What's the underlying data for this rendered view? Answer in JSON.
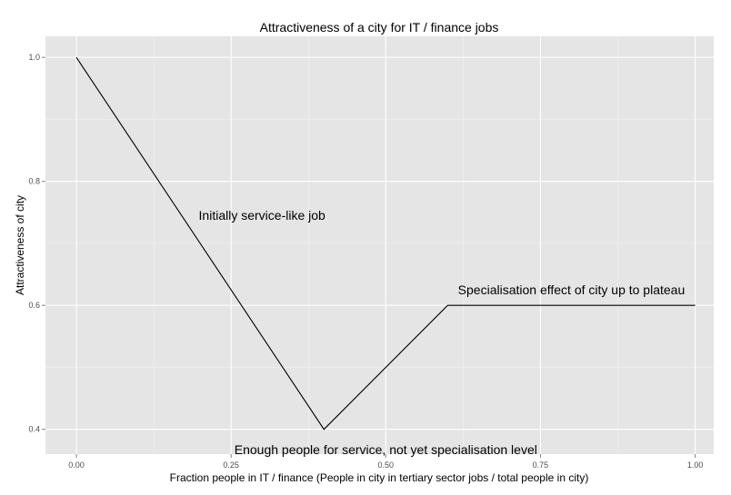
{
  "chart_data": {
    "type": "line",
    "title": "Attractiveness of a city for IT / finance jobs",
    "xlabel": "Fraction people in IT / finance (People in city in tertiary sector jobs / total people in city)",
    "ylabel": "Attractiveness of city",
    "xlim": [
      -0.05,
      1.03
    ],
    "ylim": [
      0.36,
      1.034
    ],
    "x_ticks": [
      0,
      0.25,
      0.5,
      0.75,
      1
    ],
    "x_tick_labels": [
      "0.00",
      "0.25",
      "0.50",
      "0.75",
      "1.00"
    ],
    "y_ticks": [
      0.4,
      0.6,
      0.8,
      1.0
    ],
    "y_tick_labels": [
      "0.4",
      "0.6",
      "0.8",
      "1.0"
    ],
    "grid": true,
    "series": [
      {
        "x": [
          0,
          0.4,
          0.6,
          1.0
        ],
        "y": [
          1.0,
          0.4,
          0.6,
          0.6
        ]
      }
    ],
    "annotations": [
      {
        "text": "Initially service-like job",
        "x": 0.3,
        "y": 0.745
      },
      {
        "text": "Specialisation effect of city up to plateau",
        "x": 0.8,
        "y": 0.625
      },
      {
        "text": "Enough people for service, not yet specialisation level",
        "x": 0.5,
        "y": 0.367
      }
    ],
    "colors": {
      "panel": "#e5e5e5",
      "grid_major": "#ffffff",
      "grid_minor": "#f2f2f2",
      "line": "#000000"
    }
  }
}
